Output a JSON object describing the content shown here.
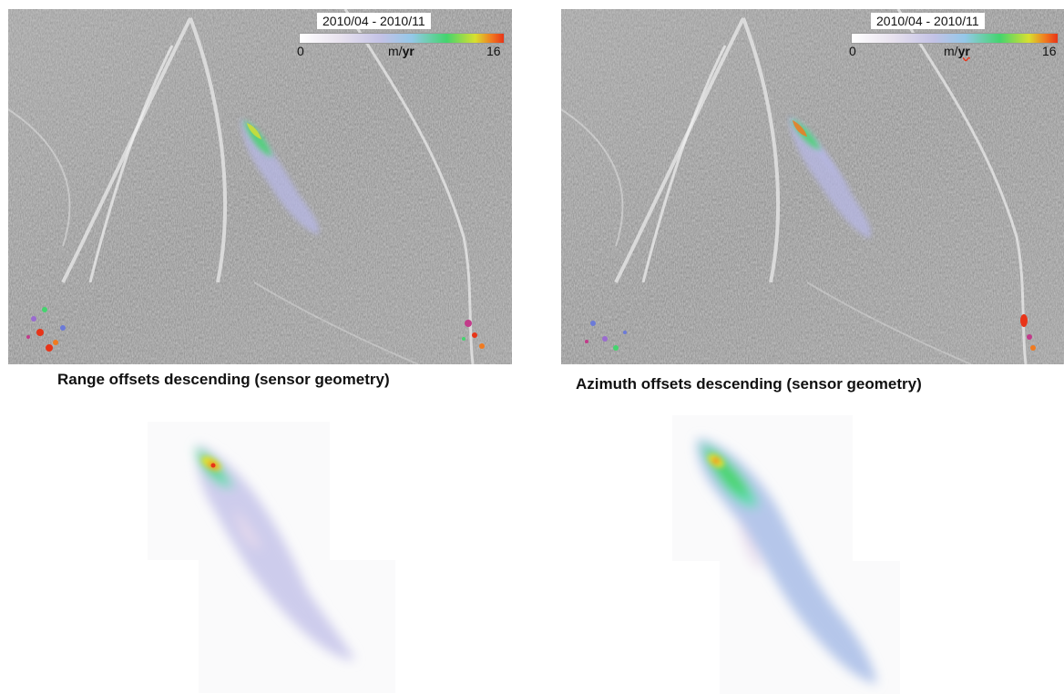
{
  "panels": [
    {
      "caption": "Range offsets descending (sensor geometry)",
      "legend": {
        "period": "2010/04 - 2010/11",
        "min": "0",
        "unit_m": "m/",
        "unit_yr": "yr",
        "max": "16"
      }
    },
    {
      "caption": "Azimuth offsets descending (sensor geometry)",
      "legend": {
        "period": "2010/04 - 2010/11",
        "min": "0",
        "unit_m": "m/",
        "unit_yr": "yr",
        "max": "16"
      }
    }
  ],
  "colors": {
    "background": "#ffffff",
    "terrain": "#8e8e8e",
    "scale_low": "#ffffff",
    "scale_mid": "#94c8e8",
    "scale_green": "#44d46e",
    "scale_high": "#e83418"
  }
}
